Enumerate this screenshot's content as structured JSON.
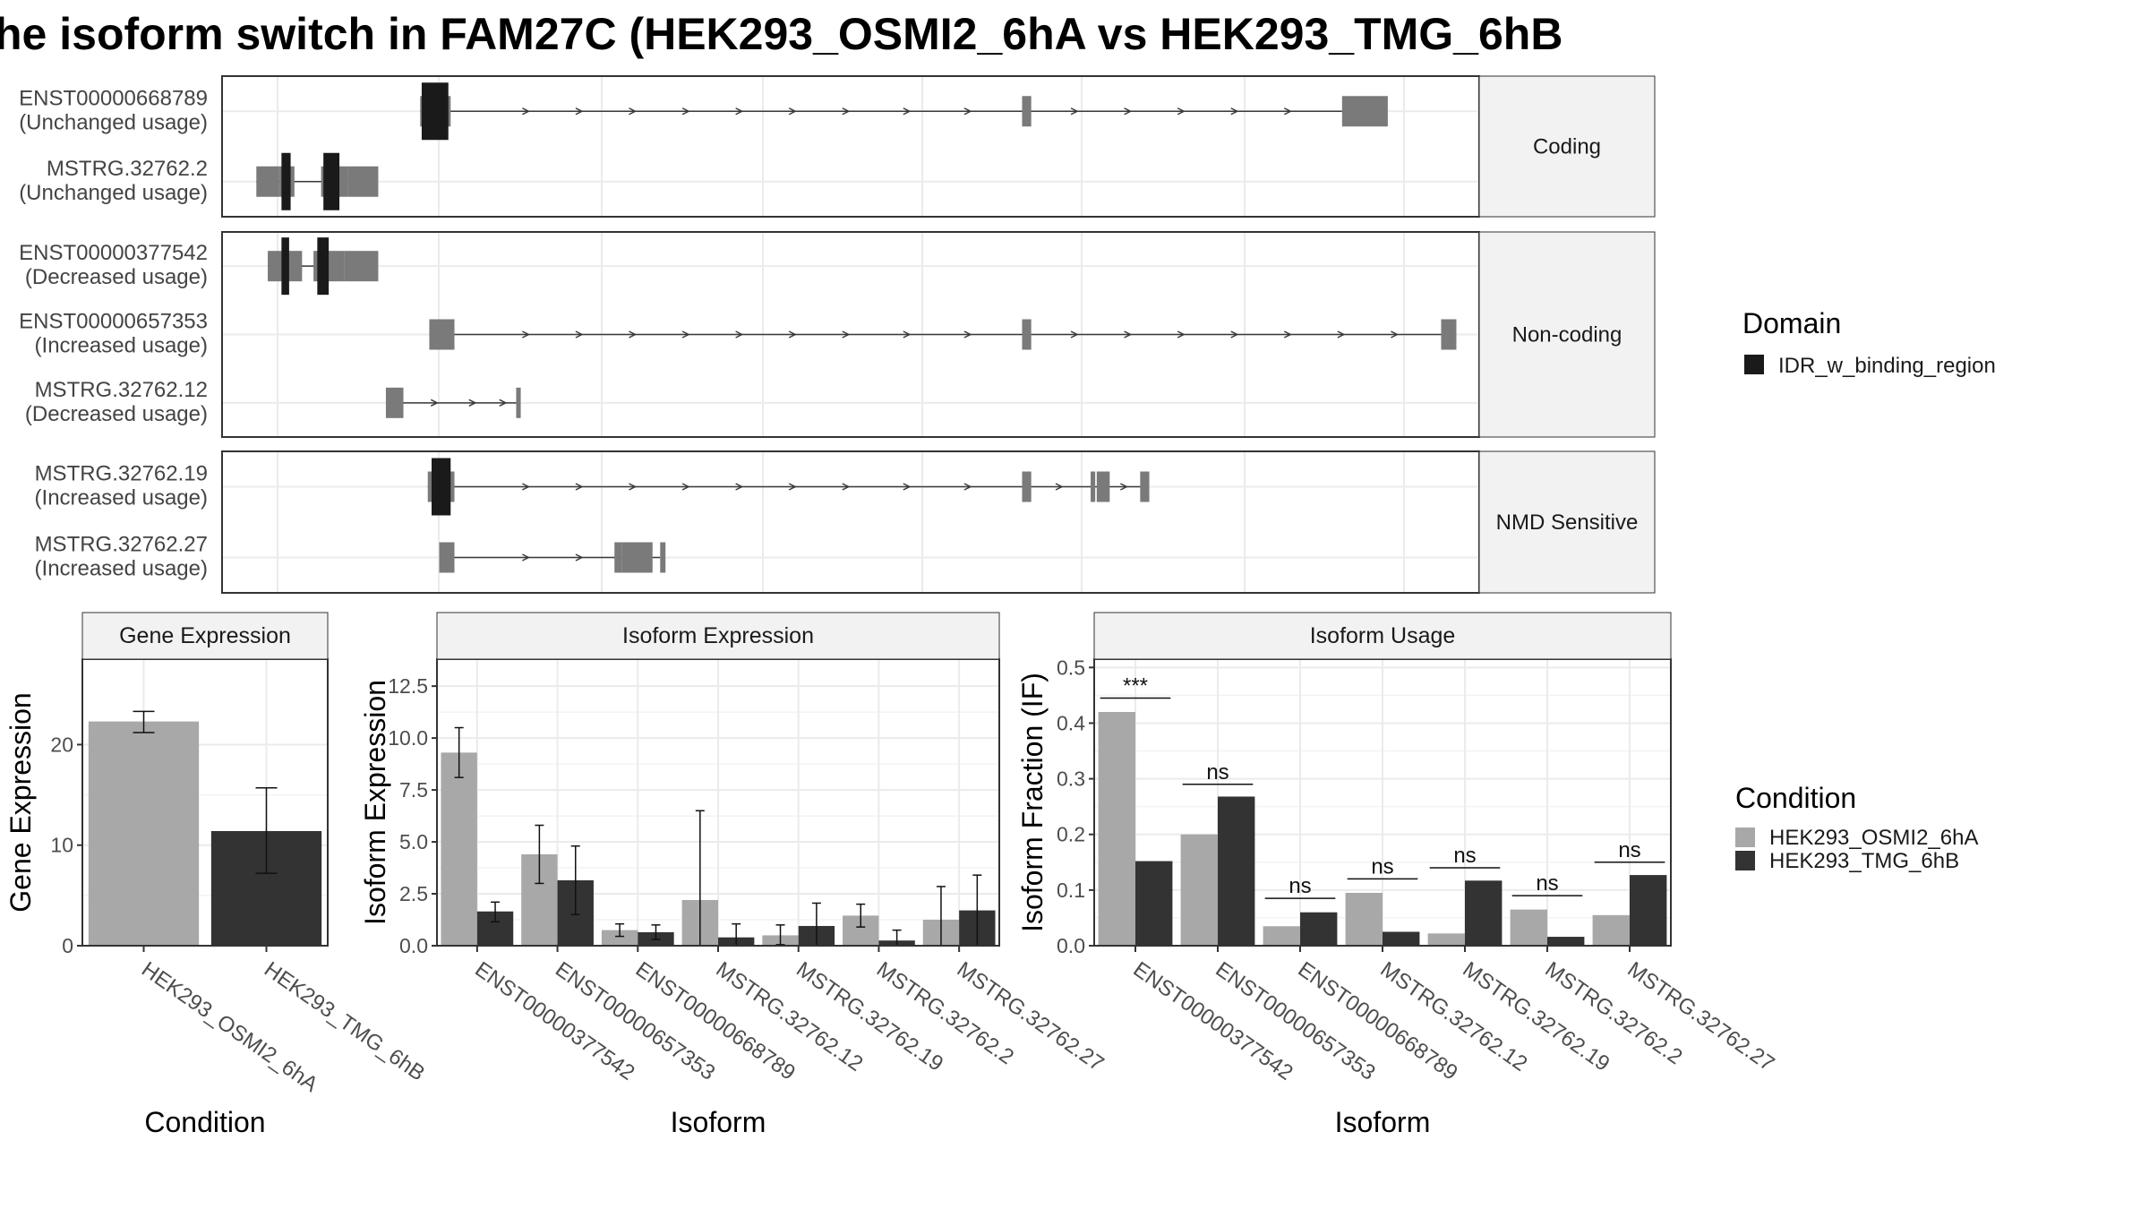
{
  "title": "he isoform switch in FAM27C (HEK293_OSMI2_6hA vs HEK293_TMG_6hB",
  "colors": {
    "intron_line": "#3a3a3a",
    "exon": "#7a7a7a",
    "domain": "#1a1a1a",
    "cond_a": "#a8a8a8",
    "cond_b": "#333333",
    "grid": "#ebebeb",
    "strip_bg": "#f2f2f2"
  },
  "structure": {
    "panels": [
      {
        "label": "Coding",
        "transcripts": [
          {
            "id": "ENST00000668789",
            "usage": "(Unchanged usage)",
            "range": [
              260,
              1470
            ],
            "exons": [
              [
                260,
                300
              ],
              [
                1050,
                1062
              ],
              [
                1470,
                1530
              ]
            ],
            "domains": [
              [
                262,
                297
              ]
            ],
            "arrows": [
              400,
              470,
              540,
              610,
              680,
              750,
              820,
              900,
              980,
              1120,
              1190,
              1260,
              1330,
              1400
            ]
          },
          {
            "id": "MSTRG.32762.2",
            "usage": "(Unchanged usage)",
            "range": [
              45,
              175
            ],
            "exons": [
              [
                45,
                75
              ],
              [
                75,
                95
              ],
              [
                130,
                165
              ],
              [
                165,
                205
              ]
            ],
            "domains": [
              [
                78,
                90
              ],
              [
                133,
                154
              ]
            ],
            "arrows": []
          }
        ]
      },
      {
        "label": "Non-coding",
        "transcripts": [
          {
            "id": "ENST00000377542",
            "usage": "(Decreased usage)",
            "range": [
              60,
              150
            ],
            "exons": [
              [
                60,
                105
              ],
              [
                120,
                160
              ],
              [
                160,
                205
              ]
            ],
            "domains": [
              [
                78,
                88
              ],
              [
                125,
                140
              ]
            ],
            "arrows": []
          },
          {
            "id": "ENST00000657353",
            "usage": "(Increased usage)",
            "range": [
              272,
              1600
            ],
            "exons": [
              [
                272,
                305
              ],
              [
                1050,
                1062
              ],
              [
                1600,
                1620
              ]
            ],
            "domains": [],
            "arrows": [
              400,
              470,
              540,
              610,
              680,
              750,
              820,
              900,
              980,
              1120,
              1190,
              1260,
              1330,
              1400,
              1470,
              1540
            ]
          },
          {
            "id": "MSTRG.32762.12",
            "usage": "(Decreased usage)",
            "range": [
              215,
              390
            ],
            "exons": [
              [
                215,
                238
              ],
              [
                386,
                392
              ]
            ],
            "domains": [],
            "arrows": [
              280,
              330,
              370
            ]
          }
        ]
      },
      {
        "label": "NMD Sensitive",
        "transcripts": [
          {
            "id": "MSTRG.32762.19",
            "usage": "(Increased usage)",
            "range": [
              270,
              1215
            ],
            "exons": [
              [
                270,
                305
              ],
              [
                1050,
                1062
              ],
              [
                1140,
                1146
              ],
              [
                1148,
                1165
              ],
              [
                1205,
                1217
              ]
            ],
            "domains": [
              [
                275,
                300
              ]
            ],
            "arrows": [
              400,
              470,
              540,
              610,
              680,
              750,
              820,
              900,
              980,
              1100,
              1185
            ]
          },
          {
            "id": "MSTRG.32762.27",
            "usage": "(Increased usage)",
            "range": [
              285,
              575
            ],
            "exons": [
              [
                285,
                305
              ],
              [
                515,
                525
              ],
              [
                525,
                565
              ],
              [
                575,
                582
              ]
            ],
            "domains": [],
            "arrows": [
              400,
              470
            ]
          }
        ]
      }
    ]
  },
  "legends": {
    "domain_title": "Domain",
    "domain_items": [
      "IDR_w_binding_region"
    ],
    "condition_title": "Condition",
    "condition_items": [
      "HEK293_OSMI2_6hA",
      "HEK293_TMG_6hB"
    ]
  },
  "chart_data": [
    {
      "type": "bar",
      "title": "Gene Expression",
      "xlabel": "Condition",
      "ylabel": "Gene Expression",
      "categories": [
        "HEK293_OSMI2_6hA",
        "HEK293_TMG_6hB"
      ],
      "values": [
        22.3,
        11.4
      ],
      "error": [
        [
          21.2,
          23.3
        ],
        [
          7.2,
          15.7
        ]
      ],
      "ylim": [
        0,
        28.5
      ],
      "yticks": [
        0,
        10,
        20
      ],
      "ytick_labels": [
        "0",
        "10",
        "20"
      ]
    },
    {
      "type": "bar",
      "title": "Isoform Expression",
      "xlabel": "Isoform",
      "ylabel": "Isoform Expression",
      "categories": [
        "ENST00000377542",
        "ENST00000657353",
        "ENST00000668789",
        "MSTRG.32762.12",
        "MSTRG.32762.19",
        "MSTRG.32762.2",
        "MSTRG.32762.27"
      ],
      "series": [
        {
          "values": [
            9.3,
            4.4,
            0.75,
            2.2,
            0.5,
            1.45,
            1.25
          ],
          "error": [
            [
              8.1,
              10.5
            ],
            [
              3.0,
              5.8
            ],
            [
              0.45,
              1.05
            ],
            [
              0,
              6.5
            ],
            [
              0.05,
              1.0
            ],
            [
              0.9,
              2.0
            ],
            [
              0,
              2.85
            ]
          ]
        },
        {
          "values": [
            1.65,
            3.15,
            0.65,
            0.4,
            0.95,
            0.25,
            1.7
          ],
          "error": [
            [
              1.15,
              2.1
            ],
            [
              1.5,
              4.8
            ],
            [
              0.3,
              1.0
            ],
            [
              0,
              1.05
            ],
            [
              0,
              2.05
            ],
            [
              0,
              0.75
            ],
            [
              0,
              3.4
            ]
          ]
        }
      ],
      "ylim": [
        0,
        13.8
      ],
      "yticks": [
        0,
        2.5,
        5,
        7.5,
        10,
        12.5
      ],
      "ytick_labels": [
        "0.0",
        "2.5",
        "5.0",
        "7.5",
        "10.0",
        "12.5"
      ]
    },
    {
      "type": "bar",
      "title": "Isoform Usage",
      "xlabel": "Isoform",
      "ylabel": "Isoform Fraction (IF)",
      "categories": [
        "ENST00000377542",
        "ENST00000657353",
        "ENST00000668789",
        "MSTRG.32762.12",
        "MSTRG.32762.19",
        "MSTRG.32762.2",
        "MSTRG.32762.27"
      ],
      "series": [
        {
          "values": [
            0.42,
            0.2,
            0.035,
            0.095,
            0.022,
            0.065,
            0.055
          ]
        },
        {
          "values": [
            0.152,
            0.268,
            0.06,
            0.025,
            0.117,
            0.016,
            0.127
          ]
        }
      ],
      "significance": [
        "***",
        "ns",
        "ns",
        "ns",
        "ns",
        "ns",
        "ns"
      ],
      "sig_y": [
        0.445,
        0.29,
        0.085,
        0.12,
        0.14,
        0.09,
        0.15
      ],
      "ylim": [
        0,
        0.515
      ],
      "yticks": [
        0,
        0.1,
        0.2,
        0.3,
        0.4,
        0.5
      ],
      "ytick_labels": [
        "0.0",
        "0.1",
        "0.2",
        "0.3",
        "0.4",
        "0.5"
      ]
    }
  ]
}
